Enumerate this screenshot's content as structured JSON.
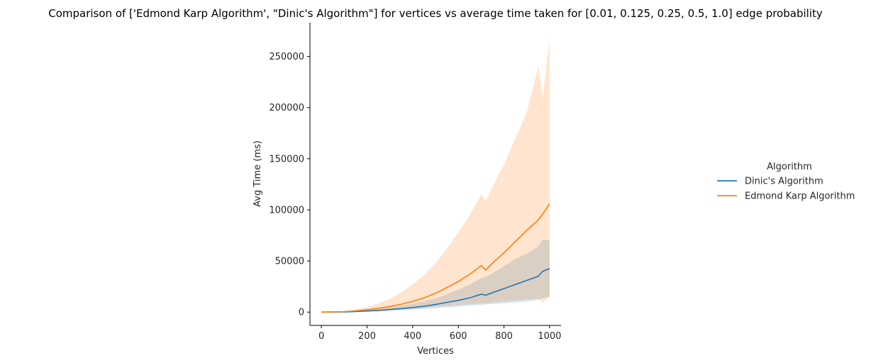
{
  "chart_data": {
    "type": "line",
    "title": "Comparison of ['Edmond Karp Algorithm', \"Dinic's Algorithm\"] for vertices vs average time taken for [0.01, 0.125, 0.25, 0.5, 1.0] edge probability",
    "xlabel": "Vertices",
    "ylabel": "Avg Time (ms)",
    "xlim": [
      -50,
      1050
    ],
    "ylim": [
      -13000,
      283000
    ],
    "xticks": [
      0,
      200,
      400,
      600,
      800,
      1000
    ],
    "yticks": [
      0,
      50000,
      100000,
      150000,
      200000,
      250000
    ],
    "legend": {
      "title": "Algorithm",
      "placement": "right, outside axes"
    },
    "grid": false,
    "x": [
      0,
      50,
      100,
      150,
      200,
      250,
      300,
      350,
      400,
      450,
      500,
      550,
      600,
      650,
      700,
      720,
      750,
      800,
      850,
      900,
      950,
      970,
      1000
    ],
    "series": [
      {
        "name": "Dinic's Algorithm",
        "color": "#1f77b4",
        "values": [
          0,
          80,
          250,
          600,
          1100,
          1700,
          2500,
          3400,
          4500,
          5800,
          7500,
          9500,
          11500,
          14000,
          17500,
          16500,
          19000,
          23000,
          27000,
          31000,
          35000,
          40000,
          42500
        ],
        "ci_low": [
          0,
          40,
          120,
          300,
          550,
          850,
          1300,
          1800,
          2400,
          3100,
          3900,
          4800,
          5600,
          6400,
          7200,
          7500,
          8000,
          8800,
          9500,
          10500,
          12000,
          13500,
          15000
        ],
        "ci_high": [
          0,
          130,
          420,
          1000,
          1900,
          3000,
          4500,
          6200,
          8200,
          10500,
          13500,
          17500,
          22000,
          27000,
          33000,
          34500,
          38000,
          45000,
          52000,
          57000,
          64000,
          71000,
          70000
        ]
      },
      {
        "name": "Edmond Karp Algorithm",
        "color": "#ff7f0e",
        "values": [
          0,
          150,
          500,
          1200,
          2300,
          3700,
          5500,
          7700,
          10500,
          14000,
          18500,
          24000,
          30000,
          37000,
          45500,
          41000,
          48000,
          58000,
          69000,
          80000,
          90000,
          96000,
          106000
        ],
        "ci_low": [
          0,
          60,
          200,
          450,
          800,
          1300,
          1900,
          2600,
          3400,
          4300,
          5200,
          6100,
          7000,
          7800,
          8500,
          9000,
          9500,
          10500,
          11500,
          12500,
          13000,
          9500,
          15000
        ],
        "ci_high": [
          0,
          300,
          1000,
          2600,
          5000,
          8500,
          13000,
          19000,
          27000,
          36000,
          48000,
          62000,
          78000,
          95000,
          115000,
          108000,
          123000,
          144000,
          170000,
          195000,
          240000,
          210000,
          268000
        ]
      }
    ]
  }
}
